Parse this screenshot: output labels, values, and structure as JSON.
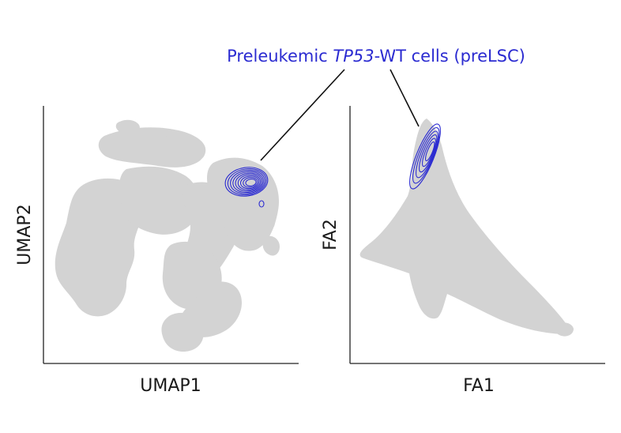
{
  "annotation": {
    "prefix": "Preleukemic ",
    "gene": "TP53",
    "suffix": "-WT cells (preLSC)"
  },
  "colors": {
    "cells": "#d3d3d3",
    "highlight": "#2b2bd1",
    "axis": "#222222",
    "text": "#1a1a1a"
  },
  "chart_data": [
    {
      "type": "scatter",
      "title": "",
      "xlabel": "UMAP1",
      "ylabel": "UMAP2",
      "ticks": false,
      "grid": false,
      "series": [
        {
          "role": "all cells",
          "color": "#d3d3d3"
        },
        {
          "role": "preLSC density contours",
          "color": "#2b2bd1",
          "contour_levels": 9
        }
      ]
    },
    {
      "type": "scatter",
      "title": "",
      "xlabel": "FA1",
      "ylabel": "FA2",
      "ticks": false,
      "grid": false,
      "series": [
        {
          "role": "all cells",
          "color": "#d3d3d3"
        },
        {
          "role": "preLSC density contours",
          "color": "#2b2bd1",
          "contour_levels": 6
        }
      ]
    }
  ]
}
